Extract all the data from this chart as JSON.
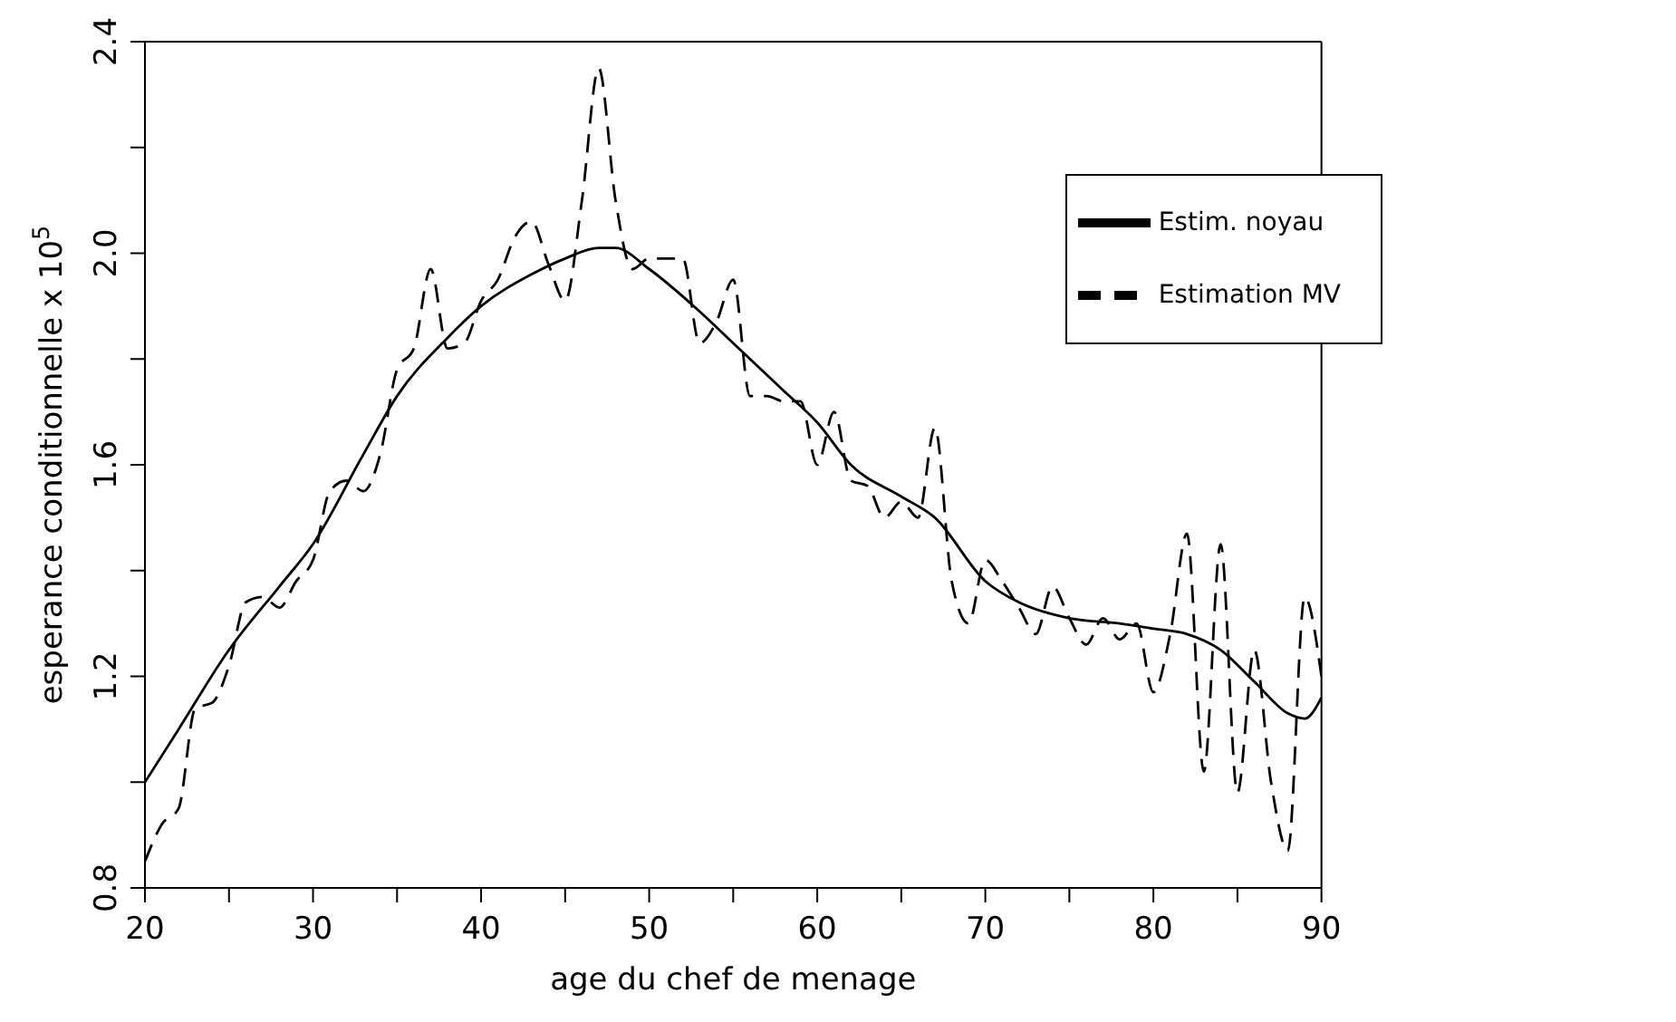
{
  "chart_data": {
    "type": "line",
    "xlabel": "age du chef de menage",
    "ylabel": "esperance conditionnelle  x 10$^{5}$",
    "xlim": [
      20,
      90
    ],
    "ylim": [
      0.8,
      2.4
    ],
    "xticks": [
      20,
      {
        "value": 25,
        "label": null
      },
      30,
      {
        "value": 35,
        "label": null
      },
      40,
      {
        "value": 45,
        "label": null
      },
      50,
      {
        "value": 55,
        "label": null
      },
      60,
      {
        "value": 65,
        "label": null
      },
      70,
      {
        "value": 75,
        "label": null
      },
      80,
      {
        "value": 85,
        "label": null
      },
      90
    ],
    "yticks": [
      {
        "value": 0.8,
        "label": "0.8"
      },
      {
        "value": 1.0,
        "label": null
      },
      1.2,
      {
        "value": 1.4,
        "label": null
      },
      1.6,
      {
        "value": 1.8,
        "label": null
      },
      {
        "value": 2.0,
        "label": "2.0"
      },
      {
        "value": 2.2,
        "label": null
      },
      2.4
    ],
    "grid": false,
    "legend": "top right",
    "marker": "none",
    "series": [
      {
        "name": "Estim. noyau",
        "color": "#000000",
        "line_style": "solid",
        "x": [
          20,
          22,
          25,
          28,
          30,
          33,
          35,
          38,
          40,
          43,
          45,
          47,
          48,
          50,
          53,
          55,
          58,
          60,
          62,
          65,
          67,
          70,
          72,
          75,
          78,
          80,
          82,
          84,
          86,
          88,
          89,
          90
        ],
        "values": [
          1.0,
          1.1,
          1.25,
          1.37,
          1.45,
          1.62,
          1.73,
          1.84,
          1.9,
          1.96,
          1.99,
          2.01,
          2.01,
          1.97,
          1.89,
          1.83,
          1.74,
          1.68,
          1.6,
          1.54,
          1.5,
          1.38,
          1.34,
          1.31,
          1.3,
          1.29,
          1.28,
          1.25,
          1.19,
          1.13,
          1.12,
          1.16
        ]
      },
      {
        "name": "Estimation MV",
        "color": "#000000",
        "line_style": "dashed",
        "x": [
          20,
          21,
          22,
          23,
          24,
          25,
          26,
          27,
          28,
          29,
          30,
          31,
          32,
          33,
          34,
          35,
          36,
          37,
          38,
          39,
          40,
          41,
          42,
          43,
          44,
          45,
          46,
          47,
          48,
          49,
          50,
          51,
          52,
          53,
          54,
          55,
          56,
          57,
          58,
          59,
          60,
          61,
          62,
          63,
          64,
          65,
          66,
          67,
          68,
          69,
          70,
          71,
          72,
          73,
          74,
          75,
          76,
          77,
          78,
          79,
          80,
          81,
          82,
          83,
          84,
          85,
          86,
          87,
          88,
          89,
          90
        ],
        "values": [
          0.85,
          0.92,
          0.95,
          1.14,
          1.15,
          1.22,
          1.34,
          1.35,
          1.33,
          1.38,
          1.42,
          1.55,
          1.57,
          1.55,
          1.62,
          1.78,
          1.82,
          1.97,
          1.82,
          1.83,
          1.91,
          1.95,
          2.03,
          2.06,
          1.98,
          1.91,
          2.1,
          2.35,
          2.1,
          1.97,
          1.99,
          1.99,
          1.99,
          1.83,
          1.87,
          1.95,
          1.73,
          1.73,
          1.72,
          1.72,
          1.6,
          1.7,
          1.57,
          1.56,
          1.5,
          1.53,
          1.5,
          1.67,
          1.38,
          1.3,
          1.42,
          1.38,
          1.33,
          1.28,
          1.37,
          1.31,
          1.26,
          1.31,
          1.27,
          1.3,
          1.17,
          1.28,
          1.47,
          1.02,
          1.45,
          0.98,
          1.25,
          1.0,
          0.87,
          1.35,
          1.2
        ]
      }
    ]
  }
}
